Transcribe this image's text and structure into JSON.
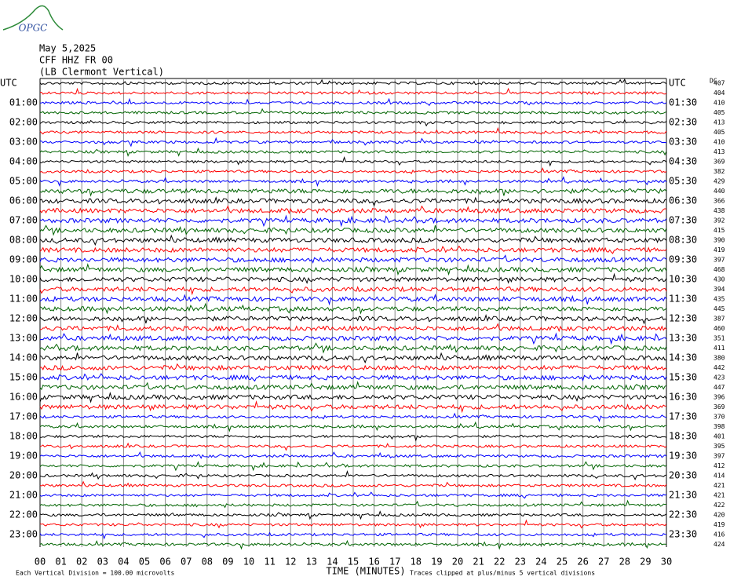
{
  "header": {
    "logo": "OPGC",
    "date": "May 5,2025",
    "station": "CFF HHZ FR 00",
    "site": "(LB Clermont Vertical)"
  },
  "labels": {
    "left": [
      "UTC",
      "01:00",
      "02:00",
      "03:00",
      "04:00",
      "05:00",
      "06:00",
      "07:00",
      "08:00",
      "09:00",
      "10:00",
      "11:00",
      "12:00",
      "13:00",
      "14:00",
      "15:00",
      "16:00",
      "17:00",
      "18:00",
      "19:00",
      "20:00",
      "21:00",
      "22:00",
      "23:00"
    ],
    "right": [
      "UTC",
      "01:30",
      "02:30",
      "03:30",
      "04:30",
      "05:30",
      "06:30",
      "07:30",
      "08:30",
      "09:30",
      "10:30",
      "11:30",
      "12:30",
      "13:30",
      "14:30",
      "15:30",
      "16:30",
      "17:30",
      "18:30",
      "19:30",
      "20:30",
      "21:30",
      "22:30",
      "23:30"
    ],
    "dc_title": "DC"
  },
  "traces": {
    "colors": [
      "#000000",
      "#ff0000",
      "#0000ff",
      "#006400"
    ],
    "dc": [
      407,
      404,
      410,
      405,
      413,
      405,
      410,
      413,
      369,
      382,
      429,
      440,
      366,
      438,
      392,
      415,
      390,
      419,
      397,
      468,
      430,
      394,
      435,
      445,
      387,
      460,
      351,
      411,
      380,
      442,
      423,
      447,
      396,
      369,
      370,
      398,
      401,
      395,
      397,
      412,
      414,
      421,
      421,
      422,
      420,
      419,
      416,
      424
    ]
  },
  "xaxis": {
    "title": "TIME (MINUTES)",
    "xlim": [
      0,
      30
    ],
    "xticks": [
      {
        "value": 0,
        "label": "00"
      },
      {
        "value": 1,
        "label": "01"
      },
      {
        "value": 2,
        "label": "02"
      },
      {
        "value": 3,
        "label": "03"
      },
      {
        "value": 4,
        "label": "04"
      },
      {
        "value": 5,
        "label": "05"
      },
      {
        "value": 6,
        "label": "06"
      },
      {
        "value": 7,
        "label": "07"
      },
      {
        "value": 8,
        "label": "08"
      },
      {
        "value": 9,
        "label": "09"
      },
      10,
      11,
      12,
      13,
      14,
      15,
      16,
      17,
      18,
      19,
      20,
      21,
      22,
      23,
      24,
      25,
      26,
      27,
      28,
      29,
      30
    ]
  },
  "footer": {
    "left": "Each Vertical Division =  100.00 microvolts",
    "right": "Traces clipped at plus/minus 5 vertical divisions"
  }
}
